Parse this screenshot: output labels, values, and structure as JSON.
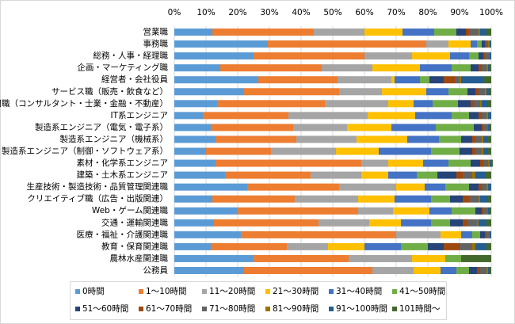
{
  "chart_data": {
    "type": "stacked-bar-100",
    "categories": [
      "営業職",
      "事務職",
      "総務・人事・経理職",
      "企画・マーケティング職",
      "経営者・会社役員",
      "サービス職（販売・飲食など）",
      "専門職（コンサルタント・士業・金融・不動産）",
      "IT系エンジニア",
      "製造系エンジニア（電気・電子系）",
      "製造系エンジニア（機械系）",
      "製造系エンジニア（制御・ソフトウェア系）",
      "素材・化学系エンジニア",
      "建築・土木系エンジニア",
      "生産技術・製造技術・品質管理関連職",
      "クリエイティブ職（広告・出版関連）",
      "Web・ゲーム関連職",
      "交通・運輸関連職",
      "医療・福祉・介護関連職",
      "教育・保育関連職",
      "農林水産関連職",
      "公務員"
    ],
    "series": [
      {
        "name": "0時間",
        "color": "#5b9bd5",
        "values": [
          12,
          29.5,
          25,
          14.5,
          26.5,
          22,
          13.5,
          9,
          11.5,
          13,
          10,
          13,
          16,
          23,
          12,
          20,
          12.5,
          21,
          11.5,
          25,
          22
        ]
      },
      {
        "name": "1～10時間",
        "color": "#ed7d31",
        "values": [
          32,
          50,
          35,
          32,
          25,
          30,
          34,
          27,
          26,
          25.5,
          20.5,
          46,
          27,
          29,
          26,
          38,
          33,
          49,
          24,
          30,
          40.5
        ]
      },
      {
        "name": "11～20時間",
        "color": "#a5a5a5",
        "values": [
          16,
          7,
          15,
          16,
          17,
          13.5,
          20,
          25,
          17,
          19,
          20.5,
          8.5,
          16,
          18,
          20,
          11,
          16,
          14,
          13,
          20,
          13
        ]
      },
      {
        "name": "21～30時間",
        "color": "#ffc000",
        "values": [
          12,
          7,
          12,
          15,
          1,
          14,
          8,
          15,
          14,
          16,
          13.5,
          11,
          8.5,
          9,
          11.5,
          11.5,
          10,
          6.5,
          11.5,
          10.5,
          8.5
        ]
      },
      {
        "name": "31～40時間",
        "color": "#4472c4",
        "values": [
          10,
          2,
          6,
          10,
          8,
          7,
          6,
          11.5,
          14,
          10,
          16.5,
          8,
          9,
          6.5,
          11.5,
          7,
          9.5,
          3.5,
          11.5,
          0,
          5
        ]
      },
      {
        "name": "41～50時間",
        "color": "#70ad47",
        "values": [
          7,
          1.5,
          3,
          6,
          3,
          6,
          8,
          5.5,
          12,
          7,
          9,
          7,
          6.5,
          7.5,
          6,
          7.5,
          6,
          2.5,
          8.5,
          5,
          4
        ]
      },
      {
        "name": "51～60時間",
        "color": "#264478",
        "values": [
          3,
          1,
          1.5,
          2.5,
          4.5,
          2.5,
          4,
          3,
          2.5,
          3.5,
          4,
          3,
          6,
          3,
          4,
          2,
          4,
          1.5,
          5,
          0,
          2.5
        ]
      },
      {
        "name": "61～70時間",
        "color": "#9e480e",
        "values": [
          1,
          0.5,
          0.5,
          1,
          3.5,
          1,
          1,
          1,
          0.5,
          1,
          1,
          1,
          2,
          1,
          2,
          0.5,
          1.5,
          0.5,
          5,
          0,
          1
        ]
      },
      {
        "name": "71～80時間",
        "color": "#636363",
        "values": [
          3,
          0.5,
          1.5,
          1.5,
          1.5,
          2,
          2,
          1.5,
          1.5,
          2,
          2,
          1.5,
          3,
          1.5,
          3,
          1.5,
          3,
          1,
          4,
          0,
          2
        ]
      },
      {
        "name": "81～90時間",
        "color": "#997300",
        "values": [
          0.5,
          0.5,
          0,
          0.5,
          0.5,
          0.5,
          0.5,
          0.5,
          0,
          0.5,
          0.5,
          0.5,
          1,
          0.5,
          0.5,
          0,
          0.5,
          0,
          1,
          0,
          0.5
        ]
      },
      {
        "name": "91～100時間",
        "color": "#255e91",
        "values": [
          2,
          0.5,
          0.5,
          0.5,
          7,
          1,
          2,
          1,
          0.5,
          1.5,
          1.5,
          0.5,
          3,
          1,
          2.5,
          0.5,
          2.5,
          0.5,
          3.5,
          0,
          0.5
        ]
      },
      {
        "name": "101時間～",
        "color": "#43682b",
        "values": [
          1.5,
          0,
          0,
          0.5,
          2.5,
          0.5,
          1,
          0,
          0.5,
          1,
          1,
          0.5,
          2,
          0,
          1,
          0.5,
          1.5,
          0,
          1.5,
          9.5,
          0.5
        ]
      }
    ],
    "xlim": [
      0,
      100
    ],
    "xticks": [
      {
        "value": 0,
        "label": "0%"
      },
      {
        "value": 10,
        "label": "10%"
      },
      {
        "value": 20,
        "label": "20%"
      },
      {
        "value": 30,
        "label": "30%"
      },
      {
        "value": 40,
        "label": "40%"
      },
      {
        "value": 50,
        "label": "50%"
      },
      {
        "value": 60,
        "label": "60%"
      },
      {
        "value": 70,
        "label": "70%"
      },
      {
        "value": 80,
        "label": "80%"
      },
      {
        "value": 90,
        "label": "90%"
      },
      {
        "value": 100,
        "label": "100%"
      }
    ],
    "grid": true,
    "legend": "bottom"
  }
}
